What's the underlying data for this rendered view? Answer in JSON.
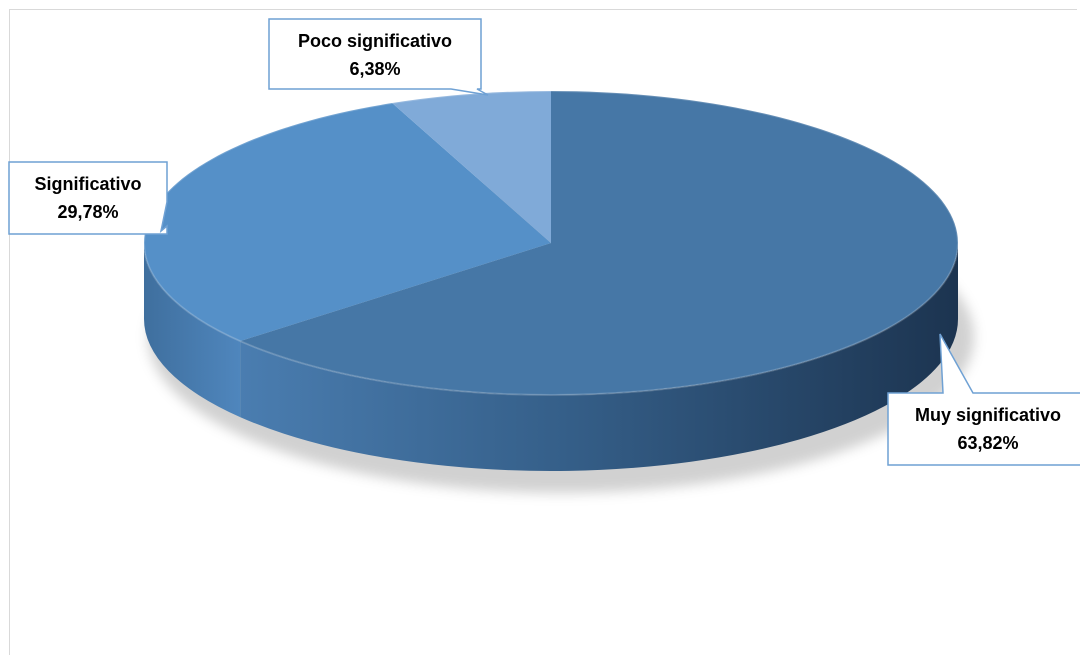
{
  "chart_data": {
    "type": "pie",
    "style": "3d",
    "title": "",
    "slices": [
      {
        "label": "Muy significativo",
        "value": 63.82,
        "display": "63,82%",
        "color": "#4677a6"
      },
      {
        "label": "Significativo",
        "value": 29.78,
        "display": "29,78%",
        "color": "#5590c8"
      },
      {
        "label": "Poco significativo",
        "value": 6.38,
        "display": "6,38%",
        "color": "#80aad8"
      }
    ],
    "start_angle_deg": 90,
    "direction": "clockwise",
    "legend": "none",
    "data_labels": "callouts"
  }
}
